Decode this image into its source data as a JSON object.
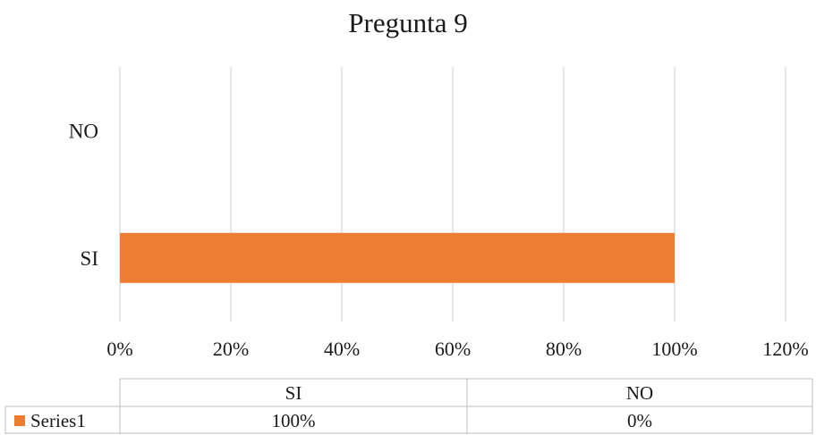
{
  "chart_data": {
    "type": "bar",
    "orientation": "horizontal",
    "title": "Pregunta 9",
    "categories": [
      "SI",
      "NO"
    ],
    "series": [
      {
        "name": "Series1",
        "values": [
          100,
          0
        ],
        "value_labels": [
          "100%",
          "0%"
        ]
      }
    ],
    "xlim": [
      0,
      120
    ],
    "x_ticks": [
      0,
      20,
      40,
      60,
      80,
      100,
      120
    ],
    "x_tick_labels": [
      "0%",
      "20%",
      "40%",
      "60%",
      "80%",
      "100%",
      "120%"
    ],
    "xlabel": "",
    "ylabel": "",
    "grid": "vertical",
    "data_table": true,
    "legend": "data-table",
    "colors": {
      "series1": "#ED7D31",
      "grid": "#D9D9D9",
      "table_border": "#BFBFBF"
    }
  }
}
